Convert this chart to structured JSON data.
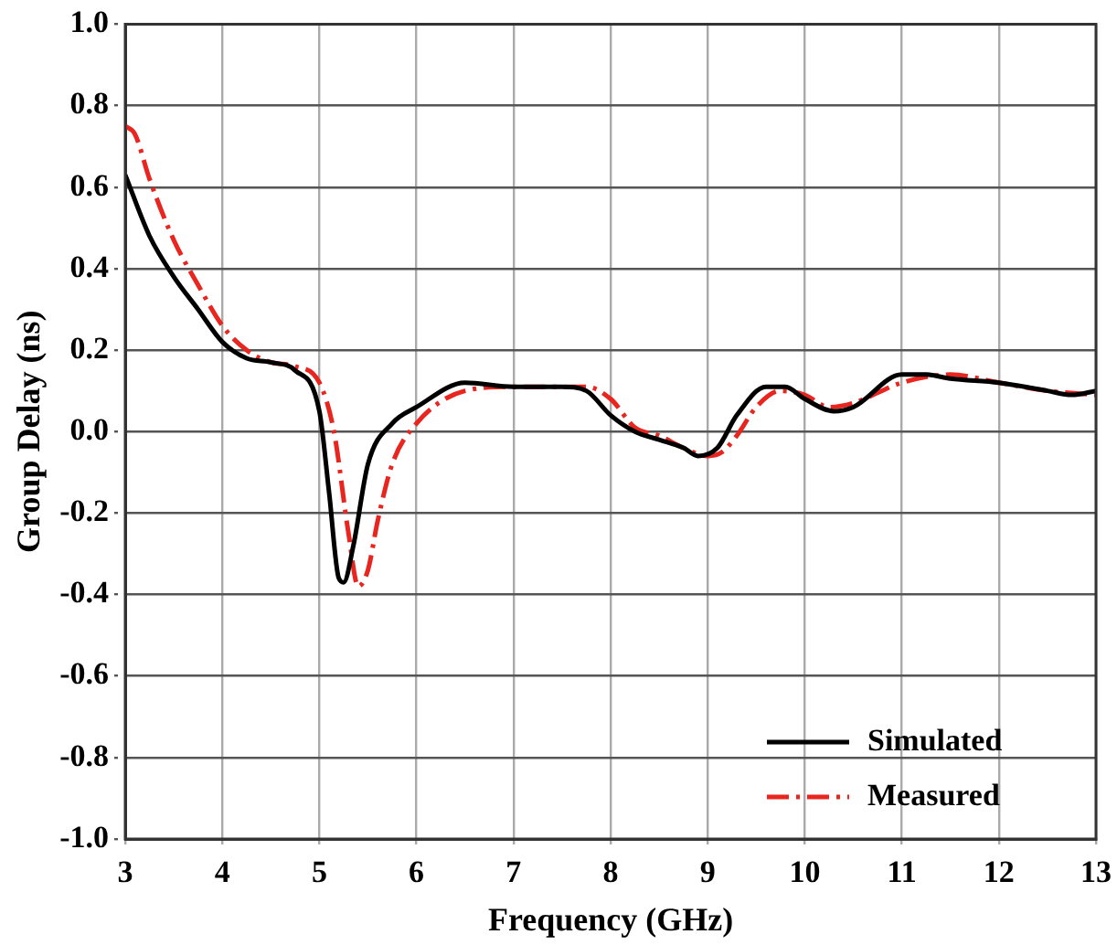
{
  "chart_data": {
    "type": "line",
    "xlabel": "Frequency (GHz)",
    "ylabel": "Group Delay (ns)",
    "xlim": [
      3,
      13
    ],
    "xticks": [
      3,
      4,
      5,
      6,
      7,
      8,
      9,
      10,
      11,
      12,
      13
    ],
    "ylim": [
      -1,
      1
    ],
    "yticks": [
      {
        "value": -1,
        "label": "-1.0"
      },
      {
        "value": -0.8,
        "label": "-0.8"
      },
      {
        "value": -0.6,
        "label": "-0.6"
      },
      {
        "value": -0.4,
        "label": "-0.4"
      },
      {
        "value": -0.2,
        "label": "-0.2"
      },
      {
        "value": 0,
        "label": "0.0"
      },
      {
        "value": 0.2,
        "label": "0.2"
      },
      {
        "value": 0.4,
        "label": "0.4"
      },
      {
        "value": 0.6,
        "label": "0.6"
      },
      {
        "value": 0.8,
        "label": "0.8"
      },
      {
        "value": 1,
        "label": "1.0"
      }
    ],
    "grid": true,
    "legend": "bottom right",
    "marker": "none",
    "series": [
      {
        "name": "Simulated",
        "color": "#000000",
        "line_style": "solid",
        "x": [
          3,
          3.25,
          3.5,
          3.75,
          4,
          4.25,
          4.5,
          4.75,
          5,
          5.1,
          5.2,
          5.25,
          5.35,
          5.5,
          5.75,
          6,
          6.5,
          7,
          7.5,
          7.75,
          8,
          8.25,
          8.5,
          8.75,
          8.9,
          9.1,
          9.3,
          9.6,
          9.8,
          10,
          10.3,
          10.5,
          11,
          11.25,
          11.5,
          12,
          12.5,
          12.75,
          13
        ],
        "values": [
          0.63,
          0.48,
          0.38,
          0.3,
          0.22,
          0.18,
          0.17,
          0.15,
          0.05,
          -0.15,
          -0.36,
          -0.37,
          -0.28,
          -0.08,
          0.02,
          0.06,
          0.12,
          0.11,
          0.11,
          0.1,
          0.04,
          0,
          -0.02,
          -0.04,
          -0.06,
          -0.04,
          0.04,
          0.11,
          0.11,
          0.08,
          0.05,
          0.06,
          0.14,
          0.14,
          0.13,
          0.12,
          0.1,
          0.09,
          0.1
        ]
      },
      {
        "name": "Measured",
        "color": "#e8251f",
        "line_style": "dashed",
        "x": [
          3,
          3.1,
          3.25,
          3.5,
          3.75,
          4,
          4.25,
          4.5,
          4.75,
          5,
          5.15,
          5.3,
          5.4,
          5.5,
          5.6,
          5.75,
          6,
          6.5,
          7,
          7.5,
          7.75,
          8,
          8.25,
          8.5,
          8.75,
          9,
          9.15,
          9.3,
          9.5,
          9.75,
          10,
          10.25,
          10.5,
          11,
          11.5,
          12,
          12.5,
          13
        ],
        "values": [
          0.75,
          0.73,
          0.62,
          0.47,
          0.36,
          0.26,
          0.2,
          0.17,
          0.16,
          0.12,
          0,
          -0.25,
          -0.38,
          -0.34,
          -0.22,
          -0.08,
          0.02,
          0.1,
          0.11,
          0.11,
          0.11,
          0.08,
          0.01,
          -0.01,
          -0.04,
          -0.06,
          -0.05,
          -0.01,
          0.06,
          0.1,
          0.09,
          0.06,
          0.07,
          0.12,
          0.14,
          0.12,
          0.1,
          0.09
        ]
      }
    ]
  }
}
